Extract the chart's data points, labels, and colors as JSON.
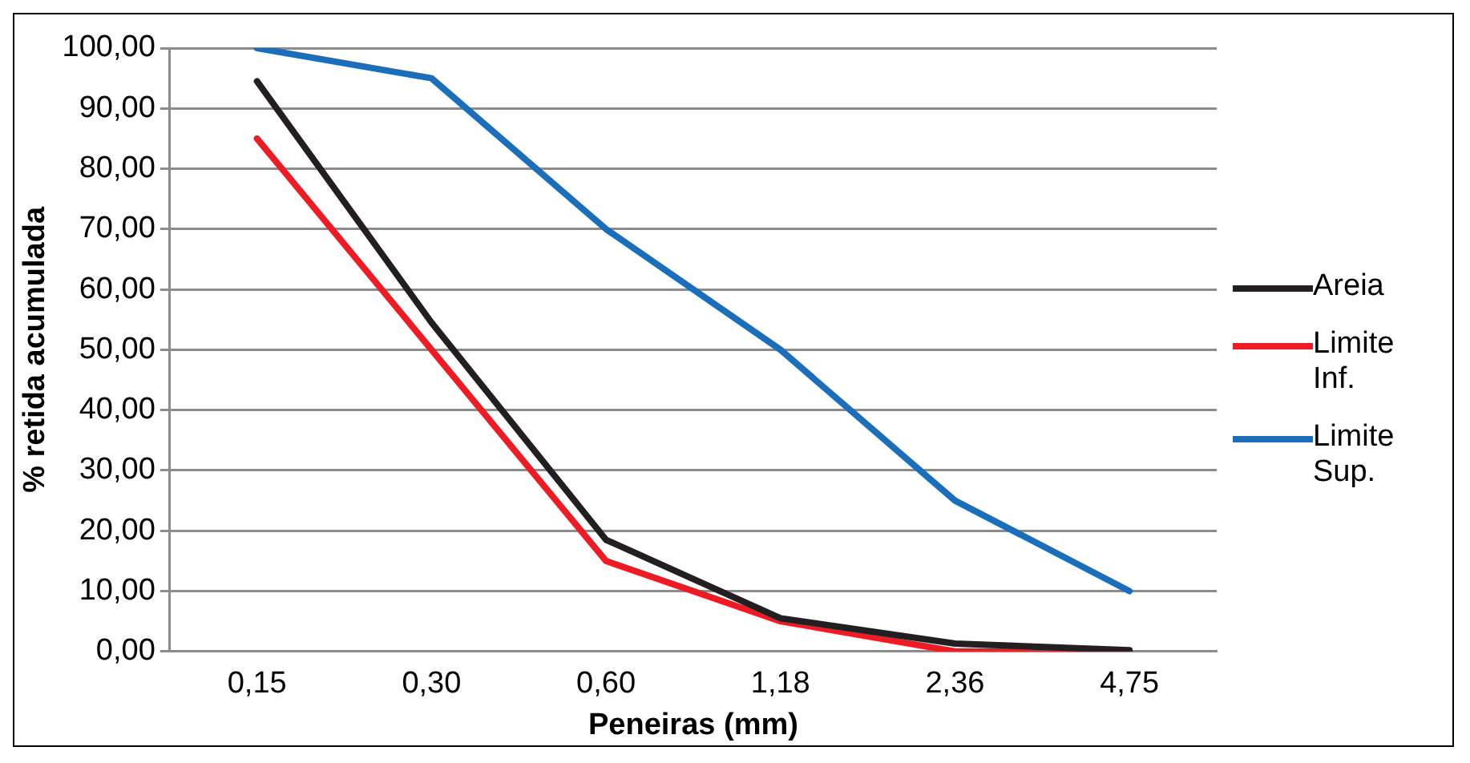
{
  "chart_data": {
    "type": "line",
    "xlabel": "Peneiras (mm)",
    "ylabel": "% retida acumulada",
    "categories": [
      "0,15",
      "0,30",
      "0,60",
      "1,18",
      "2,36",
      "4,75"
    ],
    "series": [
      {
        "name": "Areia",
        "color": "#231f20",
        "values": [
          94.5,
          54.5,
          18.5,
          5.5,
          1.3,
          0.2
        ]
      },
      {
        "name": "Limite Inf.",
        "color": "#ed1c24",
        "values": [
          85,
          50,
          15,
          5,
          0,
          0
        ]
      },
      {
        "name": "Limite Sup.",
        "color": "#1b6fba",
        "values": [
          100,
          95,
          70,
          50,
          25,
          10
        ]
      }
    ],
    "ylim": [
      0,
      100
    ],
    "yticks": [
      {
        "value": 0,
        "label": "0,00"
      },
      {
        "value": 10,
        "label": "10,00"
      },
      {
        "value": 20,
        "label": "20,00"
      },
      {
        "value": 30,
        "label": "30,00"
      },
      {
        "value": 40,
        "label": "40,00"
      },
      {
        "value": 50,
        "label": "50,00"
      },
      {
        "value": 60,
        "label": "60,00"
      },
      {
        "value": 70,
        "label": "70,00"
      },
      {
        "value": 80,
        "label": "80,00"
      },
      {
        "value": 90,
        "label": "90,00"
      },
      {
        "value": 100,
        "label": "100,00"
      }
    ],
    "grid": "y",
    "legend": "right",
    "marker": "none",
    "line_style": "solid"
  }
}
